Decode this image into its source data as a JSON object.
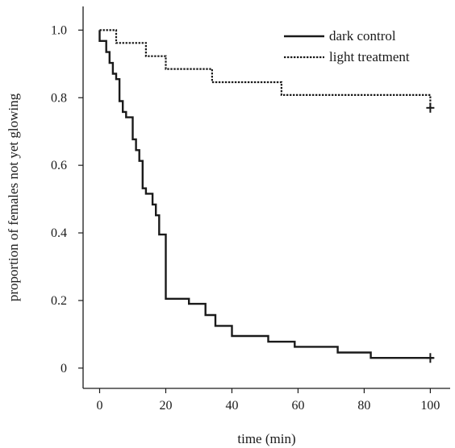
{
  "chart_data": {
    "type": "line",
    "title": "",
    "xlabel": "time (min)",
    "ylabel": "proportion of females not yet glowing",
    "xlim": [
      -5,
      106
    ],
    "ylim": [
      -0.06,
      1.07
    ],
    "xticks": [
      0,
      20,
      40,
      60,
      80,
      100
    ],
    "yticks": [
      0,
      0.2,
      0.4,
      0.6,
      0.8,
      1.0
    ],
    "xtick_labels": [
      "0",
      "20",
      "40",
      "60",
      "80",
      "100"
    ],
    "ytick_labels": [
      "0",
      "0.2",
      "0.4",
      "0.6",
      "0.8",
      "1.0"
    ],
    "grid": false,
    "legend_position": "top-right",
    "series": [
      {
        "name": "dark control",
        "style": "solid",
        "color": "#1a1a1a",
        "step": true,
        "points": [
          [
            0,
            1.0
          ],
          [
            0,
            0.968
          ],
          [
            2,
            0.968
          ],
          [
            2,
            0.935
          ],
          [
            3,
            0.935
          ],
          [
            3,
            0.903
          ],
          [
            4,
            0.903
          ],
          [
            4,
            0.871
          ],
          [
            5,
            0.871
          ],
          [
            5,
            0.855
          ],
          [
            6,
            0.855
          ],
          [
            6,
            0.79
          ],
          [
            7,
            0.79
          ],
          [
            7,
            0.758
          ],
          [
            8,
            0.758
          ],
          [
            8,
            0.742
          ],
          [
            10,
            0.742
          ],
          [
            10,
            0.677
          ],
          [
            11,
            0.677
          ],
          [
            11,
            0.645
          ],
          [
            12,
            0.645
          ],
          [
            12,
            0.613
          ],
          [
            13,
            0.613
          ],
          [
            13,
            0.532
          ],
          [
            14,
            0.532
          ],
          [
            14,
            0.516
          ],
          [
            16,
            0.516
          ],
          [
            16,
            0.484
          ],
          [
            17,
            0.484
          ],
          [
            17,
            0.452
          ],
          [
            18,
            0.452
          ],
          [
            18,
            0.395
          ],
          [
            20,
            0.395
          ],
          [
            20,
            0.205
          ],
          [
            27,
            0.205
          ],
          [
            27,
            0.19
          ],
          [
            32,
            0.19
          ],
          [
            32,
            0.157
          ],
          [
            35,
            0.157
          ],
          [
            35,
            0.125
          ],
          [
            40,
            0.125
          ],
          [
            40,
            0.095
          ],
          [
            51,
            0.095
          ],
          [
            51,
            0.078
          ],
          [
            59,
            0.078
          ],
          [
            59,
            0.063
          ],
          [
            72,
            0.063
          ],
          [
            72,
            0.046
          ],
          [
            82,
            0.046
          ],
          [
            82,
            0.03
          ],
          [
            101,
            0.03
          ]
        ],
        "censor": [
          [
            100,
            0.03
          ]
        ]
      },
      {
        "name": "light treatment",
        "style": "dotted",
        "color": "#1a1a1a",
        "step": true,
        "points": [
          [
            0,
            1.0
          ],
          [
            5,
            1.0
          ],
          [
            5,
            0.962
          ],
          [
            14,
            0.962
          ],
          [
            14,
            0.923
          ],
          [
            20,
            0.923
          ],
          [
            20,
            0.885
          ],
          [
            34,
            0.885
          ],
          [
            34,
            0.846
          ],
          [
            55,
            0.846
          ],
          [
            55,
            0.808
          ],
          [
            100,
            0.808
          ],
          [
            100,
            0.77
          ]
        ],
        "censor": [
          [
            100,
            0.77
          ]
        ]
      }
    ]
  }
}
